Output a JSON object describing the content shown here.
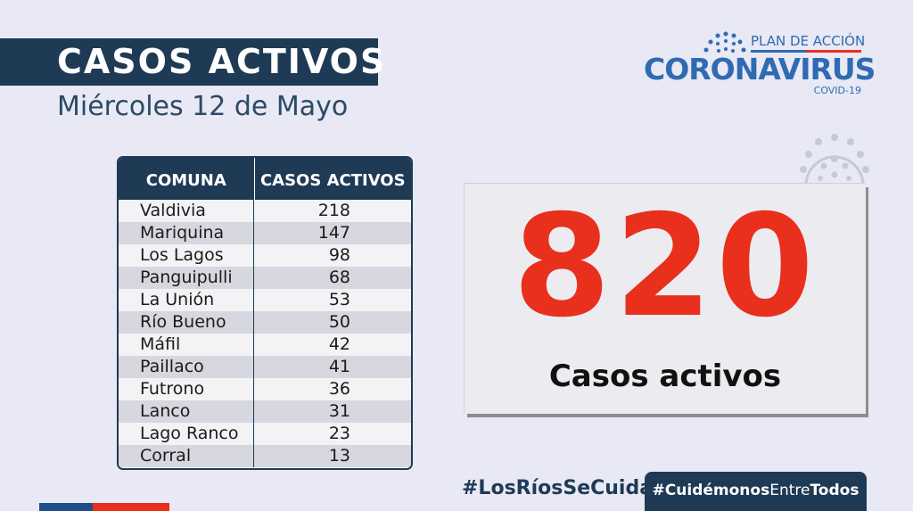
{
  "header": {
    "title": "CASOS ACTIVOS",
    "date": "Miércoles 12 de Mayo"
  },
  "logo": {
    "plan": "PLAN DE ACCIÓN",
    "main": "CORONAVIRUS",
    "sub": "COVID-19",
    "color": "#2f6bb2"
  },
  "table": {
    "headers": [
      "COMUNA",
      "CASOS ACTIVOS"
    ],
    "rows": [
      {
        "comuna": "Valdivia",
        "casos": "218"
      },
      {
        "comuna": "Mariquina",
        "casos": "147"
      },
      {
        "comuna": "Los Lagos",
        "casos": "98"
      },
      {
        "comuna": "Panguipulli",
        "casos": "68"
      },
      {
        "comuna": "La Unión",
        "casos": "53"
      },
      {
        "comuna": "Río Bueno",
        "casos": "50"
      },
      {
        "comuna": "Máfil",
        "casos": "42"
      },
      {
        "comuna": "Paillaco",
        "casos": "41"
      },
      {
        "comuna": "Futrono",
        "casos": "36"
      },
      {
        "comuna": "Lanco",
        "casos": "31"
      },
      {
        "comuna": "Lago Ranco",
        "casos": "23"
      },
      {
        "comuna": "Corral",
        "casos": "13"
      }
    ]
  },
  "total": {
    "number": "820",
    "label": "Casos activos",
    "color": "#e8301d"
  },
  "hashtags": {
    "tag1": "#LosRíosSeCuida",
    "tag2_a": "#Cuidémonos",
    "tag2_b": "Entre",
    "tag2_c": "Todos"
  },
  "colors": {
    "navy": "#1e3a55",
    "background": "#e8e9f4",
    "flag_blue": "#1e4f8a",
    "flag_red": "#e8301d"
  }
}
